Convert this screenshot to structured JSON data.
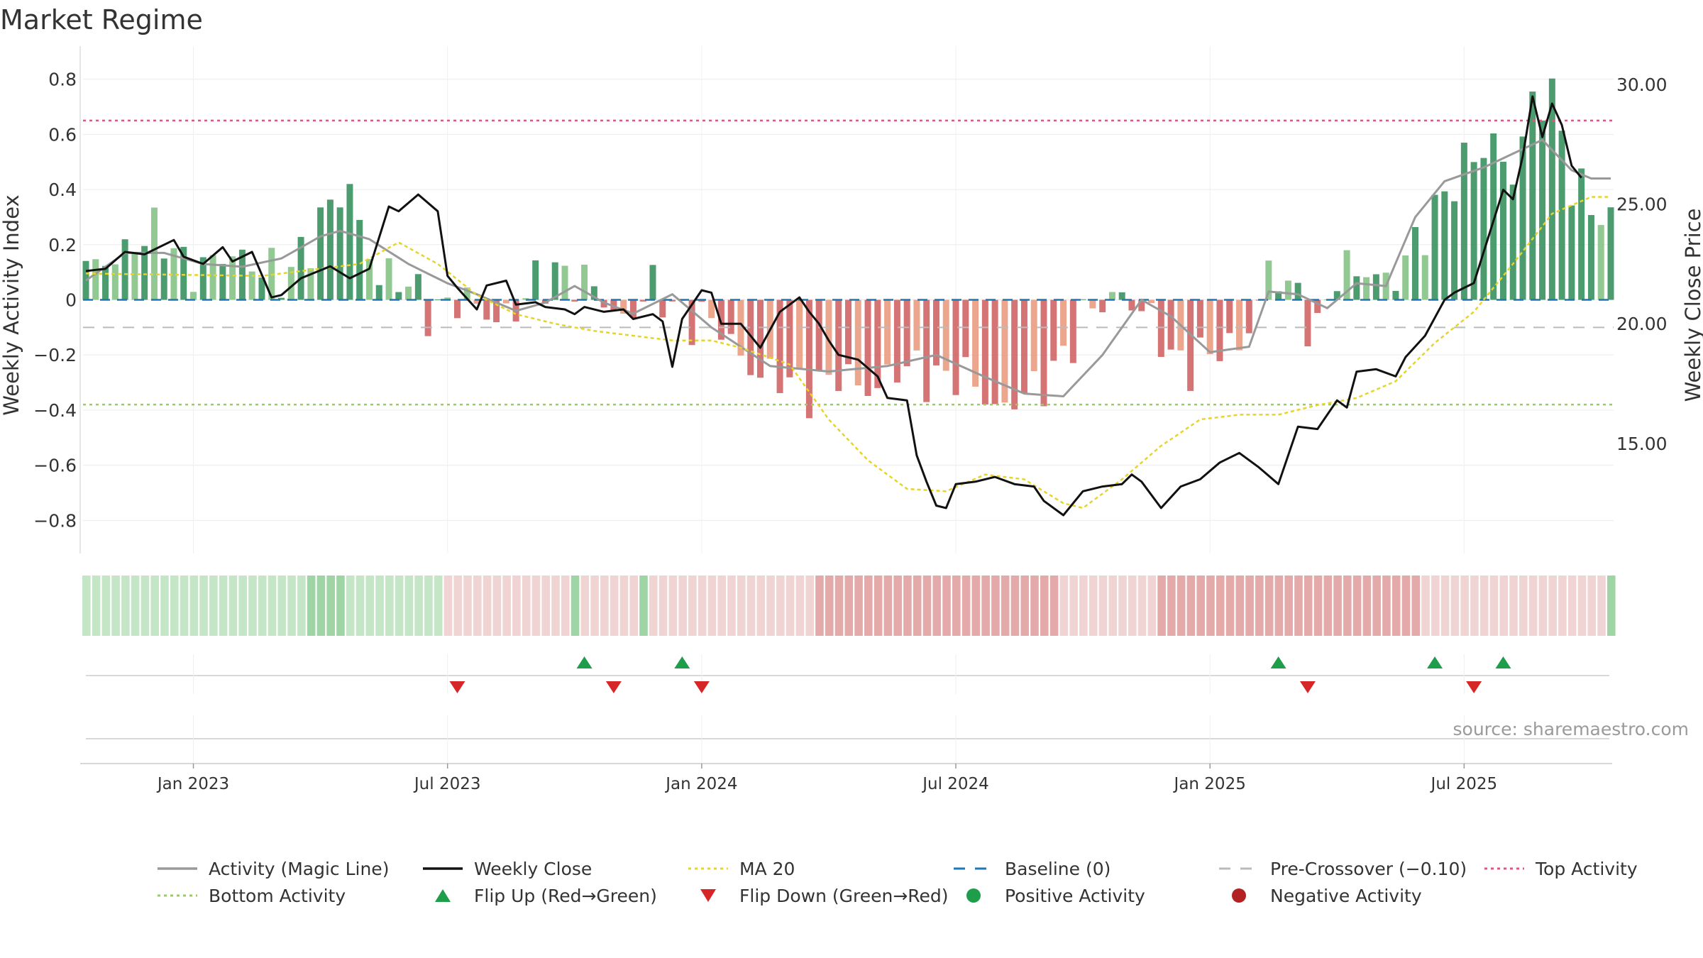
{
  "title": "Market Regime",
  "source": "source: sharemaestro.com",
  "colors": {
    "pos_dark": "#2e8b57",
    "pos_light": "#7fbf7f",
    "neg_dark": "#cd5c5c",
    "neg_light": "#e9967a",
    "magic": "#999999",
    "close": "#111111",
    "ma": "#e6d42a",
    "baseline": "#1f77b4",
    "precross": "#bbbbbb",
    "top": "#e75480",
    "bottom": "#99cc66",
    "flip_up": "#1e9e4a",
    "flip_down": "#d62728",
    "pos_dot": "#1e9e4a",
    "neg_dot": "#b22222"
  },
  "legend": [
    {
      "label": "Activity (Magic Line)",
      "icon": "solid-line",
      "color": "#999999"
    },
    {
      "label": "Weekly Close",
      "icon": "solid-line",
      "color": "#111111"
    },
    {
      "label": "MA 20",
      "icon": "dotted-line",
      "color": "#e6d42a"
    },
    {
      "label": "Baseline (0)",
      "icon": "dashed-line",
      "color": "#1f77b4"
    },
    {
      "label": "Pre-Crossover (−0.10)",
      "icon": "dashed-line",
      "color": "#bbbbbb"
    },
    {
      "label": "Top Activity",
      "icon": "dotted-line",
      "color": "#e75480"
    },
    {
      "label": "Bottom Activity",
      "icon": "dotted-line",
      "color": "#99cc66"
    },
    {
      "label": "Flip Up (Red→Green)",
      "icon": "triangle-up",
      "color": "#1e9e4a"
    },
    {
      "label": "Flip Down (Green→Red)",
      "icon": "triangle-down",
      "color": "#d62728"
    },
    {
      "label": "Positive Activity",
      "icon": "circle",
      "color": "#1e9e4a"
    },
    {
      "label": "Negative Activity",
      "icon": "circle",
      "color": "#b22222"
    }
  ],
  "chart_data": {
    "type": "bar",
    "title": "Market Regime",
    "ylabel": "Weekly Activity Index",
    "y2label": "Weekly Close Price",
    "ylim": [
      -0.92,
      0.92
    ],
    "y2lim": [
      10.4,
      31.6
    ],
    "yticks": [
      "−0.8",
      "−0.6",
      "−0.4",
      "−0.2",
      "0",
      "0.2",
      "0.4",
      "0.6",
      "0.8"
    ],
    "ytick_values": [
      -0.8,
      -0.6,
      -0.4,
      -0.2,
      0,
      0.2,
      0.4,
      0.6,
      0.8
    ],
    "y2ticks": [
      "15.00",
      "20.00",
      "25.00",
      "30.00"
    ],
    "y2tick_values": [
      15,
      20,
      25,
      30
    ],
    "xticks": [
      "Jan 2023",
      "Jul 2023",
      "Jan 2024",
      "Jul 2024",
      "Jan 2025",
      "Jul 2025"
    ],
    "xtick_weeks": [
      11,
      37,
      63,
      89,
      115,
      141
    ],
    "num_weeks": 157,
    "reference_lines": {
      "baseline": 0,
      "pre_crossover": -0.1,
      "top_activity": 0.65,
      "bottom_activity": -0.38
    },
    "activity_keypoints": [
      [
        0,
        0.08
      ],
      [
        4,
        0.2
      ],
      [
        8,
        0.22
      ],
      [
        12,
        0.1
      ],
      [
        16,
        0.18
      ],
      [
        20,
        0.05
      ],
      [
        24,
        0.3
      ],
      [
        27,
        0.38
      ],
      [
        30,
        0.1
      ],
      [
        35,
        -0.01
      ],
      [
        40,
        -0.03
      ],
      [
        44,
        -0.05
      ],
      [
        48,
        0.13
      ],
      [
        52,
        0.02
      ],
      [
        55,
        -0.05
      ],
      [
        58,
        0.02
      ],
      [
        62,
        -0.05
      ],
      [
        66,
        -0.15
      ],
      [
        70,
        -0.3
      ],
      [
        74,
        -0.3
      ],
      [
        80,
        -0.3
      ],
      [
        86,
        -0.25
      ],
      [
        90,
        -0.3
      ],
      [
        94,
        -0.38
      ],
      [
        97,
        -0.35
      ],
      [
        100,
        -0.18
      ],
      [
        103,
        -0.05
      ],
      [
        106,
        0.05
      ],
      [
        108,
        -0.05
      ],
      [
        111,
        -0.2
      ],
      [
        115,
        -0.22
      ],
      [
        118,
        -0.15
      ],
      [
        121,
        0.08
      ],
      [
        124,
        0.02
      ],
      [
        126,
        -0.1
      ],
      [
        128,
        0.07
      ],
      [
        131,
        0.13
      ],
      [
        134,
        0.05
      ],
      [
        136,
        0.2
      ],
      [
        138,
        0.35
      ],
      [
        141,
        0.46
      ],
      [
        144,
        0.6
      ],
      [
        146,
        0.44
      ],
      [
        148,
        0.68
      ],
      [
        150,
        0.78
      ],
      [
        152,
        0.44
      ],
      [
        154,
        0.3
      ]
    ],
    "magic_keypoints": [
      [
        0,
        0.07
      ],
      [
        4,
        0.17
      ],
      [
        8,
        0.17
      ],
      [
        12,
        0.13
      ],
      [
        16,
        0.12
      ],
      [
        20,
        0.15
      ],
      [
        24,
        0.23
      ],
      [
        26,
        0.25
      ],
      [
        29,
        0.22
      ],
      [
        33,
        0.13
      ],
      [
        37,
        0.06
      ],
      [
        40,
        0.02
      ],
      [
        44,
        -0.04
      ],
      [
        47,
        -0.01
      ],
      [
        50,
        0.05
      ],
      [
        53,
        -0.01
      ],
      [
        56,
        -0.05
      ],
      [
        60,
        0.02
      ],
      [
        64,
        -0.1
      ],
      [
        67,
        -0.17
      ],
      [
        70,
        -0.24
      ],
      [
        76,
        -0.26
      ],
      [
        82,
        -0.24
      ],
      [
        87,
        -0.2
      ],
      [
        92,
        -0.28
      ],
      [
        96,
        -0.34
      ],
      [
        100,
        -0.35
      ],
      [
        104,
        -0.2
      ],
      [
        108,
        0.0
      ],
      [
        111,
        -0.06
      ],
      [
        115,
        -0.19
      ],
      [
        119,
        -0.17
      ],
      [
        121,
        0.03
      ],
      [
        124,
        0.02
      ],
      [
        127,
        -0.03
      ],
      [
        130,
        0.06
      ],
      [
        133,
        0.05
      ],
      [
        136,
        0.3
      ],
      [
        139,
        0.43
      ],
      [
        143,
        0.48
      ],
      [
        146,
        0.53
      ],
      [
        149,
        0.58
      ],
      [
        152,
        0.47
      ],
      [
        154,
        0.44
      ]
    ],
    "close_keypoints": [
      [
        0,
        22.2
      ],
      [
        2,
        22.3
      ],
      [
        4,
        23.0
      ],
      [
        6,
        22.9
      ],
      [
        9,
        23.5
      ],
      [
        10,
        22.8
      ],
      [
        12,
        22.5
      ],
      [
        14,
        23.2
      ],
      [
        15,
        22.6
      ],
      [
        17,
        23.0
      ],
      [
        19,
        21.1
      ],
      [
        20,
        21.2
      ],
      [
        22,
        21.9
      ],
      [
        25,
        22.4
      ],
      [
        27,
        21.9
      ],
      [
        29,
        22.3
      ],
      [
        31,
        24.9
      ],
      [
        32,
        24.7
      ],
      [
        34,
        25.4
      ],
      [
        36,
        24.7
      ],
      [
        37,
        22.0
      ],
      [
        38,
        21.5
      ],
      [
        40,
        20.6
      ],
      [
        41,
        21.6
      ],
      [
        43,
        21.8
      ],
      [
        44,
        20.8
      ],
      [
        46,
        20.9
      ],
      [
        47,
        20.7
      ],
      [
        49,
        20.6
      ],
      [
        50,
        20.4
      ],
      [
        51,
        20.7
      ],
      [
        53,
        20.5
      ],
      [
        55,
        20.6
      ],
      [
        56,
        20.2
      ],
      [
        58,
        20.4
      ],
      [
        59,
        20.1
      ],
      [
        60,
        18.2
      ],
      [
        61,
        20.2
      ],
      [
        63,
        21.4
      ],
      [
        64,
        21.3
      ],
      [
        65,
        20.0
      ],
      [
        67,
        20.0
      ],
      [
        68,
        19.5
      ],
      [
        69,
        19.0
      ],
      [
        71,
        20.5
      ],
      [
        73,
        21.1
      ],
      [
        74,
        20.5
      ],
      [
        75,
        20.0
      ],
      [
        76,
        19.3
      ],
      [
        77,
        18.7
      ],
      [
        79,
        18.5
      ],
      [
        81,
        17.8
      ],
      [
        82,
        16.9
      ],
      [
        84,
        16.8
      ],
      [
        85,
        14.5
      ],
      [
        86,
        13.4
      ],
      [
        87,
        12.4
      ],
      [
        88,
        12.3
      ],
      [
        89,
        13.3
      ],
      [
        91,
        13.4
      ],
      [
        93,
        13.6
      ],
      [
        95,
        13.3
      ],
      [
        97,
        13.2
      ],
      [
        98,
        12.6
      ],
      [
        100,
        12.0
      ],
      [
        102,
        13.0
      ],
      [
        104,
        13.2
      ],
      [
        106,
        13.3
      ],
      [
        107,
        13.7
      ],
      [
        108,
        13.4
      ],
      [
        110,
        12.3
      ],
      [
        112,
        13.2
      ],
      [
        114,
        13.5
      ],
      [
        116,
        14.2
      ],
      [
        118,
        14.6
      ],
      [
        120,
        14.0
      ],
      [
        122,
        13.3
      ],
      [
        124,
        15.7
      ],
      [
        126,
        15.6
      ],
      [
        128,
        16.8
      ],
      [
        129,
        16.5
      ],
      [
        130,
        18.0
      ],
      [
        132,
        18.1
      ],
      [
        134,
        17.8
      ],
      [
        135,
        18.6
      ],
      [
        137,
        19.5
      ],
      [
        139,
        21.0
      ],
      [
        140,
        21.3
      ],
      [
        142,
        21.7
      ],
      [
        145,
        25.6
      ],
      [
        146,
        25.2
      ],
      [
        147,
        27.0
      ],
      [
        148,
        29.5
      ],
      [
        149,
        27.8
      ],
      [
        150,
        29.2
      ],
      [
        151,
        28.3
      ],
      [
        152,
        26.6
      ],
      [
        153,
        26.1
      ]
    ],
    "ma_keypoints": [
      [
        0,
        22.1
      ],
      [
        18,
        22.0
      ],
      [
        26,
        22.4
      ],
      [
        28,
        22.5
      ],
      [
        32,
        23.4
      ],
      [
        36,
        22.5
      ],
      [
        40,
        21.2
      ],
      [
        44,
        20.4
      ],
      [
        48,
        20.0
      ],
      [
        52,
        19.7
      ],
      [
        56,
        19.5
      ],
      [
        60,
        19.3
      ],
      [
        64,
        19.3
      ],
      [
        67,
        19.0
      ],
      [
        72,
        18.3
      ],
      [
        76,
        16.0
      ],
      [
        80,
        14.3
      ],
      [
        84,
        13.1
      ],
      [
        88,
        13.0
      ],
      [
        92,
        13.7
      ],
      [
        96,
        13.5
      ],
      [
        100,
        12.5
      ],
      [
        102,
        12.3
      ],
      [
        106,
        13.5
      ],
      [
        110,
        14.9
      ],
      [
        114,
        16.0
      ],
      [
        118,
        16.2
      ],
      [
        122,
        16.2
      ],
      [
        126,
        16.6
      ],
      [
        130,
        16.9
      ],
      [
        134,
        17.6
      ],
      [
        138,
        19.2
      ],
      [
        142,
        20.5
      ],
      [
        146,
        22.5
      ],
      [
        150,
        24.6
      ],
      [
        154,
        25.3
      ]
    ],
    "regime_strip": "LLLLLLLLLLLLLLLLLLLLLLLMMMMLLLLLLLLLLxxxxxxxxxxxxxMxxxxxxMxxxxxxxxxxxxxxxxxyyyyyyyyyyyyyyyyyyyyyyyyyxxxxxxxxxxyyyyyyyyyyyyyyyyyyyyyyyyyyyxxxxxxxxxxxxxxxxxxxMxxxxxxLLLLLLMMMMDDDDDDDDDDDDDDDDDDD",
    "flip_up_weeks": [
      51,
      61,
      122,
      138,
      145
    ],
    "flip_down_weeks": [
      38,
      54,
      63,
      125,
      142
    ]
  }
}
